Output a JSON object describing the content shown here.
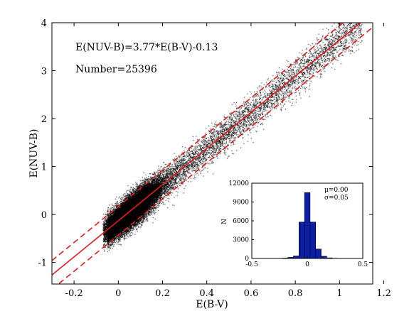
{
  "chart_data": [
    {
      "type": "scatter",
      "xlabel": "E(B-V)",
      "ylabel": "E(NUV-B)",
      "xlim": [
        -0.3,
        1.15
      ],
      "ylim": [
        -1.45,
        4.0
      ],
      "xticks": [
        -0.2,
        0,
        0.2,
        0.4,
        0.6,
        0.8,
        1,
        1.2
      ],
      "xtick_labels": [
        "-0.2",
        "0",
        "0.2",
        "0.4",
        "0.6",
        "0.8",
        "1",
        "1.2"
      ],
      "yticks": [
        -1,
        0,
        1,
        2,
        3,
        4
      ],
      "ytick_labels": [
        "-1",
        "0",
        "1",
        "2",
        "3",
        "4"
      ],
      "grid": false,
      "annotations": [
        "E(NUV-B)=3.77*E(B-V)-0.13",
        "Number=25396"
      ],
      "point_count": 25396,
      "point_color": "#000000",
      "fit": {
        "slope": 3.77,
        "intercept": -0.13,
        "offset": 0.3,
        "color": "#e41a1c",
        "lines": [
          {
            "style": "solid",
            "offset": 0
          },
          {
            "style": "dashed",
            "offset": 0.3
          },
          {
            "style": "dashed",
            "offset": -0.3
          }
        ]
      },
      "point_density": {
        "x_center": 0.06,
        "x_spread": 0.11,
        "x_min": -0.05,
        "x_max": 1.1,
        "residual_sigma": 0.15
      }
    },
    {
      "type": "bar",
      "xlabel": "",
      "ylabel": "N",
      "xlim": [
        -0.5,
        0.5
      ],
      "ylim": [
        0,
        12000
      ],
      "xticks": [
        -0.5,
        0,
        0.5
      ],
      "xtick_labels": [
        "-0.5",
        "0",
        "0.5"
      ],
      "yticks": [
        0,
        3000,
        6000,
        9000,
        12000
      ],
      "ytick_labels": [
        "0",
        "3000",
        "6000",
        "9000",
        "12000"
      ],
      "bin_width": 0.05,
      "bin_centers": [
        -0.25,
        -0.2,
        -0.15,
        -0.1,
        -0.05,
        0,
        0.05,
        0.1,
        0.15,
        0.2,
        0.25
      ],
      "values": [
        20,
        60,
        180,
        400,
        5800,
        10500,
        5800,
        1500,
        350,
        100,
        30
      ],
      "bar_color": "#0a1ea8",
      "legend_lines": [
        "μ=0.00",
        "σ=0.05"
      ]
    }
  ]
}
